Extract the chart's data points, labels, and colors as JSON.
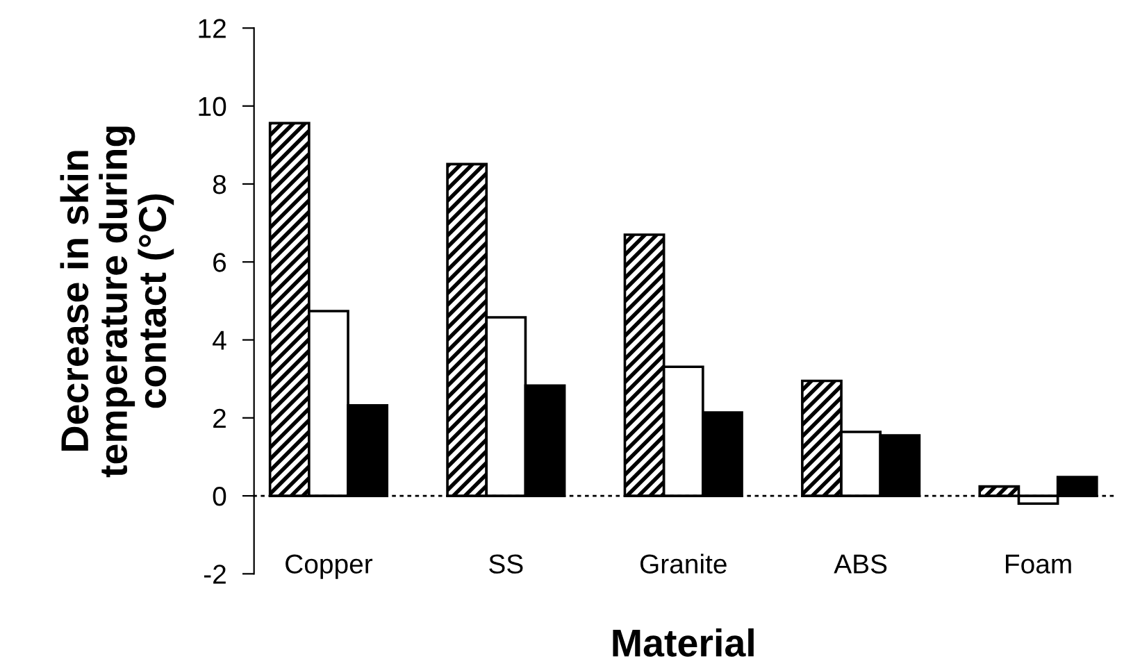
{
  "chart_data": {
    "type": "bar",
    "xlabel": "Material",
    "ylabel": "Decrease in skin\ntemperature during\ncontact (°C)",
    "categories": [
      "Copper",
      "SS",
      "Granite",
      "ABS",
      "Foam"
    ],
    "series": [
      {
        "color": "#000000",
        "values": [
          9.56,
          8.51,
          6.7,
          2.95,
          0.24
        ]
      },
      {
        "color": "#ffffff",
        "values": [
          4.74,
          4.58,
          3.31,
          1.64,
          -0.2
        ]
      },
      {
        "color": "#000000",
        "values": [
          2.32,
          2.83,
          2.14,
          1.55,
          0.48
        ]
      }
    ],
    "ylim": [
      -2,
      12
    ],
    "yticks": [
      -2,
      0,
      2,
      4,
      6,
      8,
      10,
      12
    ]
  }
}
